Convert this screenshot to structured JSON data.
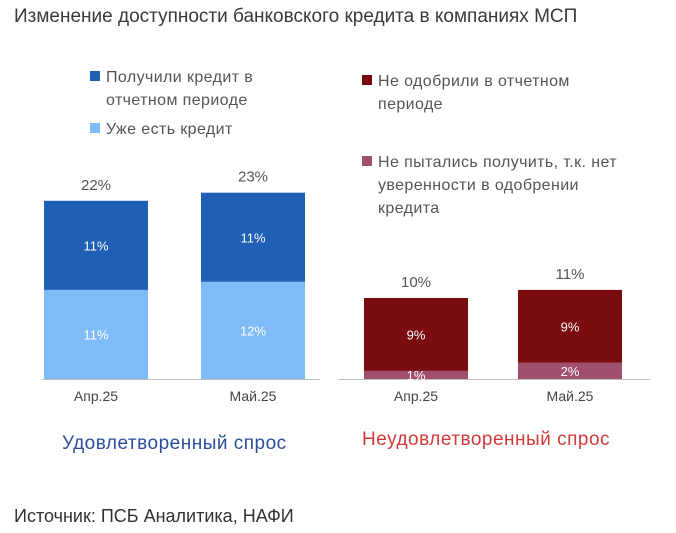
{
  "title": "Изменение доступности банковского кредита в компаниях МСП",
  "source": "Источник: ПСБ Аналитика, НАФИ",
  "legend": [
    {
      "label_line1": "Получили кредит в",
      "label_line2": "отчетном периоде",
      "color": "#1f5fb5"
    },
    {
      "label_line1": "Уже есть кредит",
      "label_line2": "",
      "color": "#7fbcf7"
    },
    {
      "label_line1": "Не одобрили в отчетном",
      "label_line2": "периоде",
      "color": "#7a0c10"
    },
    {
      "label_line1": "Не пытались получить, т.к. нет",
      "label_line2": "уверенности в одобрении",
      "label_line3": "кредита",
      "color": "#a14f6e"
    }
  ],
  "chart_data": [
    {
      "type": "bar",
      "stacked": true,
      "group_label": "Удовлетворенный спрос",
      "group_label_color": "#2b4f9c",
      "categories": [
        "Апр.25",
        "Май.25"
      ],
      "series": [
        {
          "name": "Уже есть кредит",
          "values": [
            11,
            12
          ],
          "labels": [
            "11%",
            "12%"
          ],
          "color": "#7fbcf7"
        },
        {
          "name": "Получили кредит в отчетном периоде",
          "values": [
            11,
            11
          ],
          "labels": [
            "11%",
            "11%"
          ],
          "color": "#1f5fb5"
        }
      ],
      "totals": [
        "22%",
        "23%"
      ]
    },
    {
      "type": "bar",
      "stacked": true,
      "group_label": "Неудовлетворенный спрос",
      "group_label_color": "#d23a3a",
      "categories": [
        "Апр.25",
        "Май.25"
      ],
      "series": [
        {
          "name": "Не пытались получить, т.к. нет уверенности в одобрении кредита",
          "values": [
            1,
            2
          ],
          "labels": [
            "1%",
            "2%"
          ],
          "color": "#a14f6e"
        },
        {
          "name": "Не одобрили в отчетном периоде",
          "values": [
            9,
            9
          ],
          "labels": [
            "9%",
            "9%"
          ],
          "color": "#7a0c10"
        }
      ],
      "totals": [
        "10%",
        "11%"
      ]
    }
  ]
}
